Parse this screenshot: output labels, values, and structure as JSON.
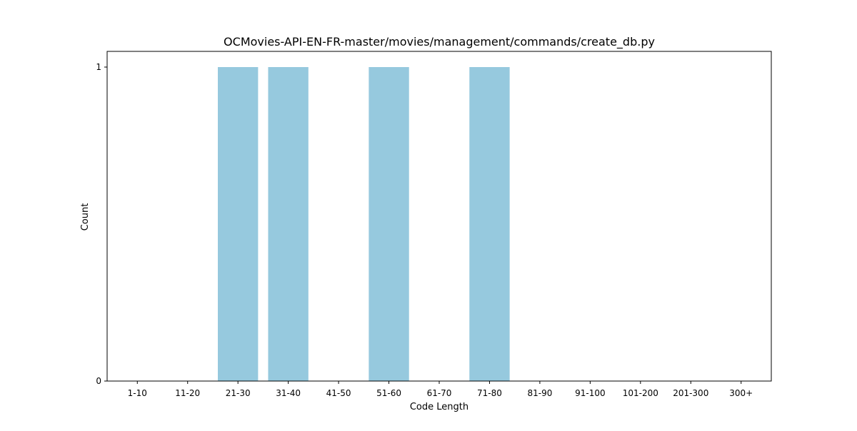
{
  "chart_data": {
    "type": "bar",
    "title": "OCMovies-API-EN-FR-master/movies/management/commands/create_db.py",
    "xlabel": "Code Length",
    "ylabel": "Count",
    "categories": [
      "1-10",
      "11-20",
      "21-30",
      "31-40",
      "41-50",
      "51-60",
      "61-70",
      "71-80",
      "81-90",
      "91-100",
      "101-200",
      "201-300",
      "300+"
    ],
    "values": [
      0,
      0,
      1,
      1,
      0,
      1,
      0,
      1,
      0,
      0,
      0,
      0,
      0
    ],
    "ylim": [
      0,
      1.05
    ],
    "yticks": [
      0,
      1
    ],
    "grid": false,
    "legend": "none",
    "colors": {
      "bar": "#96c9de",
      "axes": "#000000"
    }
  }
}
